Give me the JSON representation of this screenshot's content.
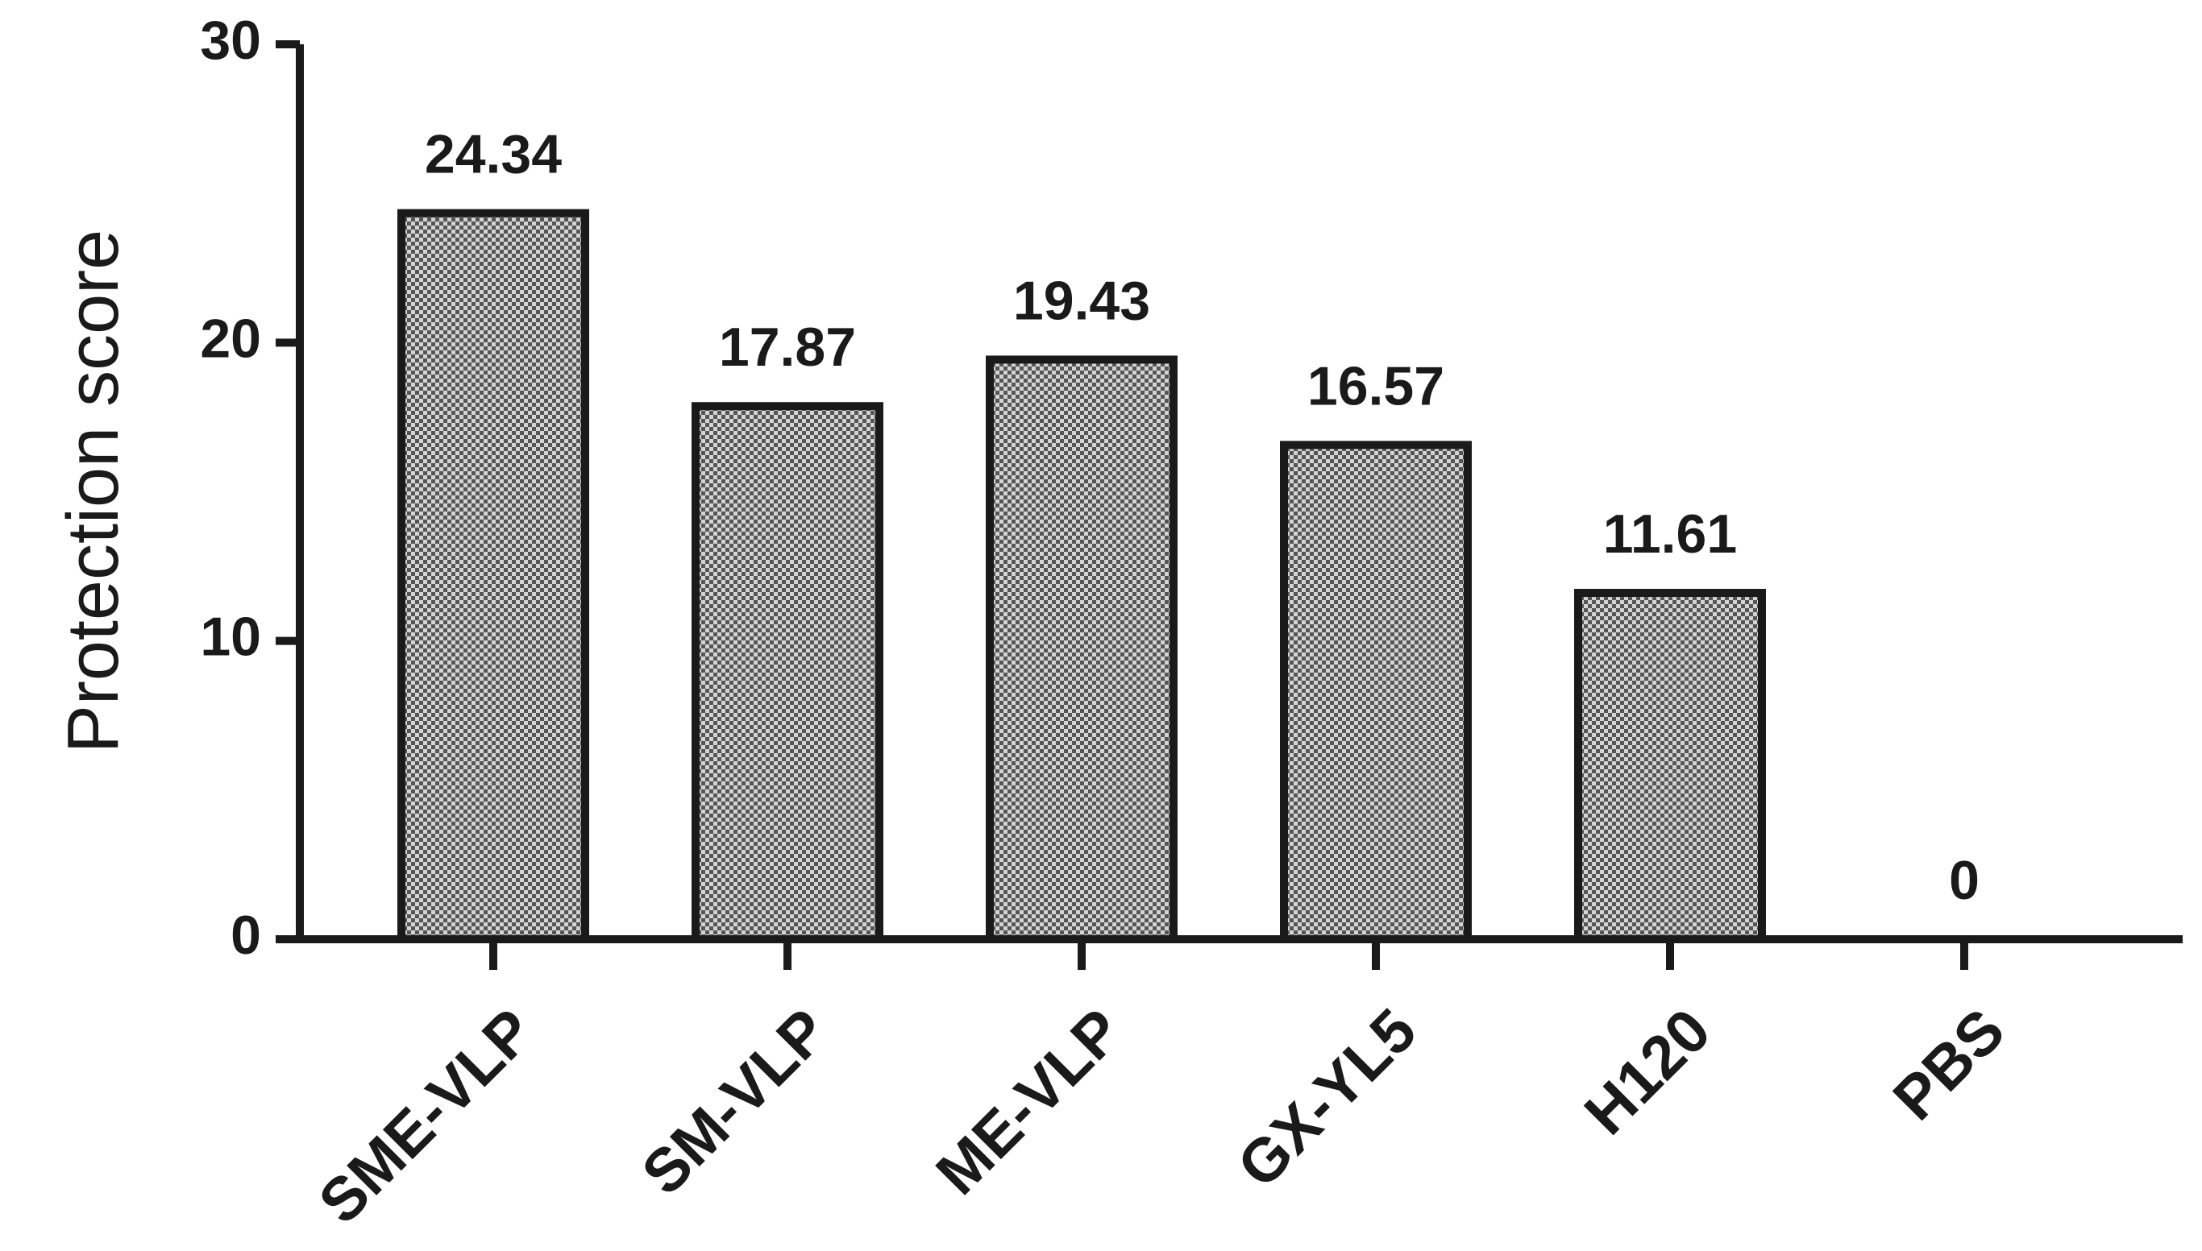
{
  "chart_data": {
    "type": "bar",
    "categories": [
      "SME-VLP",
      "SM-VLP",
      "ME-VLP",
      "GX-YL5",
      "H120",
      "PBS"
    ],
    "values": [
      24.34,
      17.87,
      19.43,
      16.57,
      11.61,
      0
    ],
    "value_labels": [
      "24.34",
      "17.87",
      "19.43",
      "16.57",
      "11.61",
      "0"
    ],
    "title": "",
    "xlabel": "",
    "ylabel": "Protection score",
    "ylim": [
      0,
      30
    ],
    "yticks": [
      0,
      10,
      20,
      30
    ],
    "ytick_labels": [
      "0",
      "10",
      "20",
      "30"
    ],
    "grid": false,
    "legend": "none",
    "colors": {
      "bar_fill": "#a8a8a8",
      "bar_stroke": "#1a1a1a",
      "axis": "#1a1a1a"
    }
  }
}
